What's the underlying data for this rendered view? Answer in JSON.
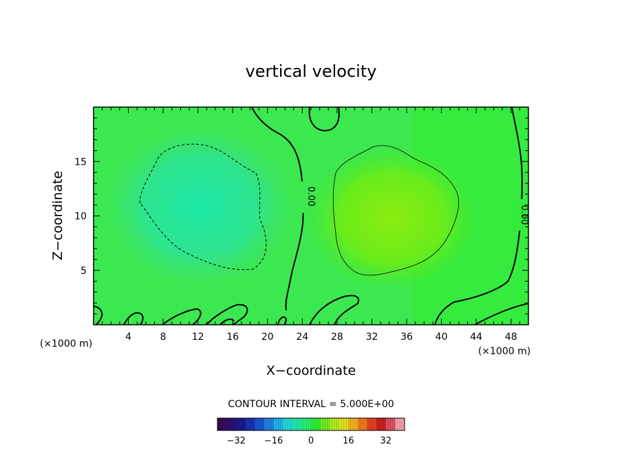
{
  "chart_data": {
    "type": "heatmap",
    "subtype": "contour",
    "title": "vertical velocity",
    "xlabel": "X−coordinate",
    "ylabel": "Z−coordinate",
    "x_unit_left": "(×1000 m)",
    "x_unit_right": "(×1000 m)",
    "xlim": [
      0,
      50
    ],
    "ylim": [
      0,
      20
    ],
    "xticks": [
      4,
      8,
      12,
      16,
      20,
      24,
      28,
      32,
      36,
      40,
      44,
      48
    ],
    "yticks": [
      5,
      10,
      15
    ],
    "contour_interval_text": "CONTOUR INTERVAL = 5.000E+00",
    "contour_interval": 5,
    "zero_contour_labels": [
      "0.00",
      "0.00"
    ],
    "field_features": [
      {
        "kind": "downdraft",
        "sign": "negative",
        "contour": -5,
        "center_x": 12,
        "center_z": 11,
        "peak": -9
      },
      {
        "kind": "updraft",
        "sign": "positive",
        "contour": 5,
        "center_x": 33,
        "center_z": 10,
        "peak": 10
      }
    ],
    "colorbar": {
      "colors": [
        "#3a0a55",
        "#2a1070",
        "#1a1a8c",
        "#1a30b0",
        "#1a55d0",
        "#2080e0",
        "#20b0e8",
        "#20d8d8",
        "#20e8a8",
        "#28ec70",
        "#30ec30",
        "#70ec20",
        "#b0ec20",
        "#e0e020",
        "#f0b020",
        "#f07820",
        "#e04020",
        "#c82020",
        "#d85060",
        "#f0a0a8"
      ],
      "vmin": -40,
      "vmax": 40,
      "tick_values": [
        -32,
        -16,
        0,
        16,
        32
      ],
      "tick_labels": [
        "−32",
        "−16",
        "0",
        "16",
        "32"
      ]
    }
  }
}
